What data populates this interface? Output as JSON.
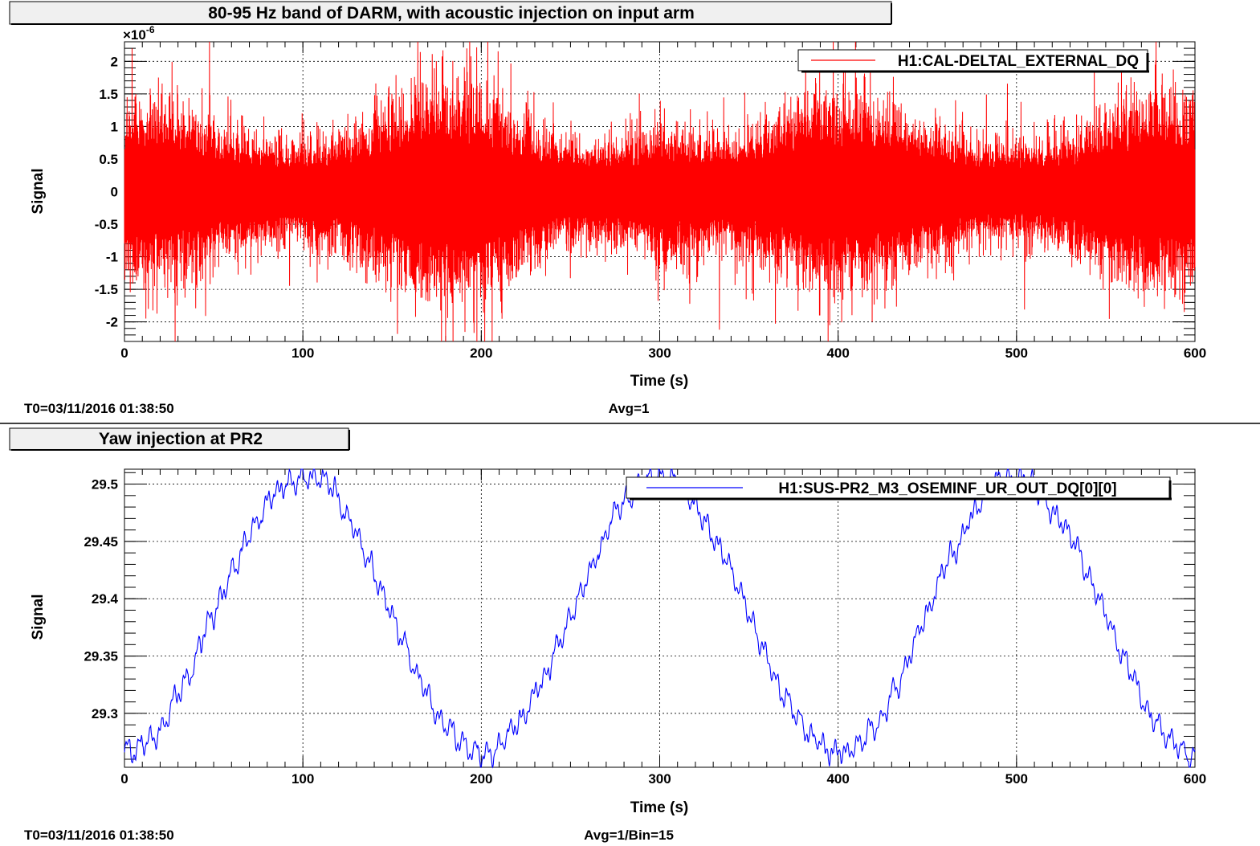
{
  "colors": {
    "series_top": "#ff0000",
    "series_bottom": "#0000ff",
    "grid": "#000000",
    "title_box_fill": "#f0f0f0"
  },
  "chart_data": [
    {
      "type": "line",
      "title": "80-95 Hz band of DARM, with acoustic injection on input arm",
      "xlabel": "Time (s)",
      "ylabel": "Signal",
      "y_exponent": "×10",
      "y_exponent_power": "-6",
      "xlim": [
        0,
        600
      ],
      "ylim": [
        -2.3,
        2.3
      ],
      "x_ticks": [
        "0",
        "100",
        "200",
        "300",
        "400",
        "500",
        "600"
      ],
      "x_tick_values": [
        0,
        100,
        200,
        300,
        400,
        500,
        600
      ],
      "y_ticks": [
        "-2",
        "-1.5",
        "-1",
        "-0.5",
        "0",
        "0.5",
        "1",
        "1.5",
        "2"
      ],
      "y_tick_values": [
        -2,
        -1.5,
        -1,
        -0.5,
        0,
        0.5,
        1,
        1.5,
        2
      ],
      "grid": true,
      "legend_position": "top-right",
      "series": [
        {
          "name": "H1:CAL-DELTAL_EXTERNAL_DQ",
          "description": "band-passed noise, envelope amplitude (x1e-6) vs time",
          "envelope_x": [
            0,
            20,
            40,
            60,
            80,
            100,
            120,
            140,
            160,
            180,
            200,
            220,
            240,
            260,
            280,
            300,
            320,
            340,
            360,
            380,
            400,
            420,
            440,
            460,
            480,
            500,
            520,
            540,
            560,
            580,
            600
          ],
          "envelope_y": [
            1.15,
            1.1,
            0.95,
            0.75,
            0.65,
            0.6,
            0.7,
            0.95,
            1.2,
            1.35,
            1.25,
            0.95,
            0.7,
            0.6,
            0.65,
            0.8,
            0.75,
            0.7,
            0.85,
            1.1,
            1.25,
            1.1,
            0.95,
            0.75,
            0.6,
            0.6,
            0.65,
            0.8,
            1.05,
            1.2,
            1.1
          ],
          "peak_max": 2.3,
          "peak_min": -2.3
        }
      ],
      "footer_left": "T0=03/11/2016 01:38:50",
      "footer_center": "Avg=1"
    },
    {
      "type": "line",
      "title": "Yaw injection at PR2",
      "xlabel": "Time (s)",
      "ylabel": "Signal",
      "xlim": [
        0,
        600
      ],
      "ylim": [
        29.253,
        29.513
      ],
      "x_ticks": [
        "0",
        "100",
        "200",
        "300",
        "400",
        "500",
        "600"
      ],
      "x_tick_values": [
        0,
        100,
        200,
        300,
        400,
        500,
        600
      ],
      "y_ticks": [
        "29.3",
        "29.35",
        "29.4",
        "29.45",
        "29.5"
      ],
      "y_tick_values": [
        29.3,
        29.35,
        29.4,
        29.45,
        29.5
      ],
      "grid": true,
      "legend_position": "top-right",
      "series": [
        {
          "name": "H1:SUS-PR2_M3_OSEMINF_UR_OUT_DQ[0][0]",
          "description": "sinusoid, period ~200 s",
          "mean": 29.386,
          "amplitude": 0.12,
          "period_s": 200,
          "peak_time_s": 100
        }
      ],
      "footer_left": "T0=03/11/2016 01:38:50",
      "footer_center": "Avg=1/Bin=15"
    }
  ]
}
